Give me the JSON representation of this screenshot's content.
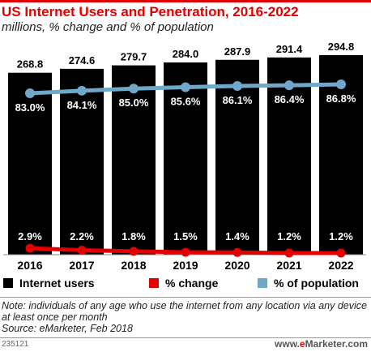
{
  "header": {
    "title": "US Internet Users and Penetration, 2016-2022",
    "subtitle": "millions, % change and % of population"
  },
  "legend": {
    "users": "Internet users",
    "change": "% change",
    "population": "% of population"
  },
  "note": "Note: individuals of any age who use the internet from any location via any device at least once per month",
  "source": "Source: eMarketer, Feb 2018",
  "footer": {
    "chart_id": "235121",
    "logo_prefix": "www.",
    "logo_brand": "e",
    "logo_name": "Marketer",
    "logo_suffix": ".com"
  },
  "colors": {
    "bars": "#000000",
    "change": "#e20000",
    "population": "#6fa8c8",
    "accent": "#e20000"
  },
  "chart_data": {
    "type": "bar",
    "categories": [
      "2016",
      "2017",
      "2018",
      "2019",
      "2020",
      "2021",
      "2022"
    ],
    "series": [
      {
        "name": "Internet users",
        "type": "bar",
        "values": [
          268.8,
          274.6,
          279.7,
          284.0,
          287.9,
          291.4,
          294.8
        ],
        "labels": [
          "268.8",
          "274.6",
          "279.7",
          "284.0",
          "287.9",
          "291.4",
          "294.8"
        ]
      },
      {
        "name": "% of population",
        "type": "line",
        "values": [
          83.0,
          84.1,
          85.0,
          85.6,
          86.1,
          86.4,
          86.8
        ],
        "labels": [
          "83.0%",
          "84.1%",
          "85.0%",
          "85.6%",
          "86.1%",
          "86.4%",
          "86.8%"
        ]
      },
      {
        "name": "% change",
        "type": "line",
        "values": [
          2.9,
          2.2,
          1.8,
          1.5,
          1.4,
          1.2,
          1.2
        ],
        "labels": [
          "2.9%",
          "2.2%",
          "1.8%",
          "1.5%",
          "1.4%",
          "1.2%",
          "1.2%"
        ]
      }
    ]
  }
}
